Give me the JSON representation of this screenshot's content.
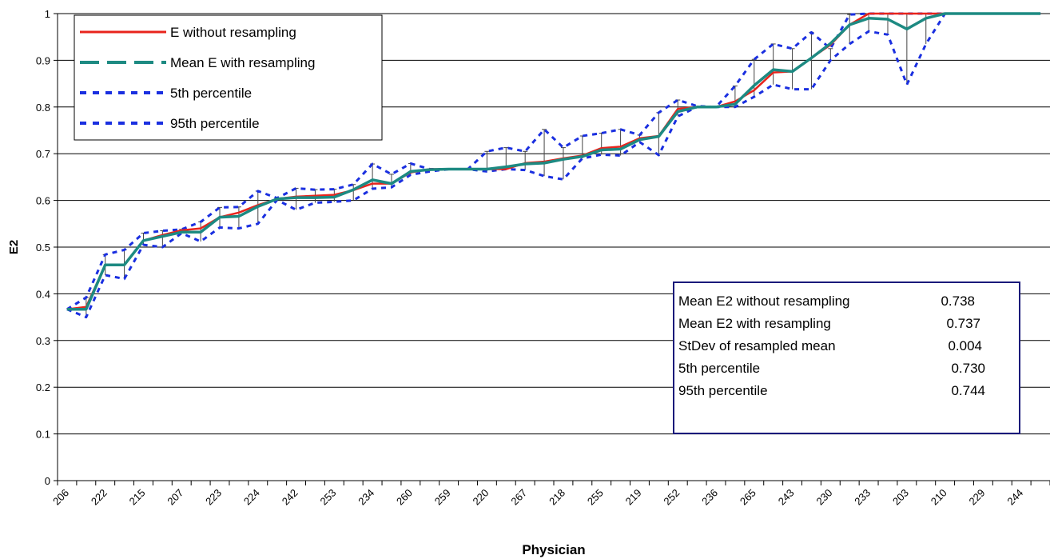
{
  "chart_data": {
    "type": "line",
    "ylabel": "E2",
    "xlabel": "Physician",
    "ylim": [
      0,
      1
    ],
    "yticks": [
      "0",
      "0.1",
      "0.2",
      "0.3",
      "0.4",
      "0.5",
      "0.6",
      "0.7",
      "0.8",
      "0.9",
      "1"
    ],
    "grid": true,
    "tick_labels": [
      "206",
      "222",
      "215",
      "207",
      "223",
      "224",
      "242",
      "253",
      "234",
      "260",
      "259",
      "220",
      "267",
      "218",
      "255",
      "219",
      "252",
      "236",
      "265",
      "243",
      "230",
      "233",
      "203",
      "210",
      "229",
      "244"
    ],
    "tick_positions": [
      1,
      3,
      5,
      7,
      9,
      11,
      13,
      15,
      17,
      19,
      21,
      23,
      25,
      27,
      29,
      31,
      33,
      35,
      37,
      39,
      41,
      43,
      45,
      47,
      49,
      51
    ],
    "n_points": 52,
    "legend": {
      "placement": "top-left",
      "entries": [
        "E without resampling",
        "Mean E with resampling",
        "5th percentile",
        "95th percentile"
      ]
    },
    "series": [
      {
        "name": "E without resampling",
        "color": "#e8241c",
        "values": [
          0.367,
          0.372,
          0.462,
          0.462,
          0.514,
          0.526,
          0.536,
          0.54,
          0.564,
          0.574,
          0.59,
          0.603,
          0.608,
          0.61,
          0.612,
          0.622,
          0.636,
          0.636,
          0.66,
          0.667,
          0.667,
          0.667,
          0.667,
          0.667,
          0.68,
          0.683,
          0.69,
          0.696,
          0.712,
          0.715,
          0.733,
          0.738,
          0.796,
          0.8,
          0.8,
          0.812,
          0.836,
          0.874,
          0.876,
          0.905,
          0.933,
          0.976,
          1.0,
          1.0,
          1.0,
          1.0,
          1.0,
          1.0,
          1.0,
          1.0,
          1.0,
          1.0
        ]
      },
      {
        "name": "Mean E with resampling",
        "color": "#1d8a82",
        "values": [
          0.367,
          0.367,
          0.462,
          0.462,
          0.514,
          0.523,
          0.532,
          0.532,
          0.564,
          0.566,
          0.587,
          0.603,
          0.606,
          0.606,
          0.607,
          0.623,
          0.644,
          0.636,
          0.662,
          0.666,
          0.667,
          0.667,
          0.667,
          0.672,
          0.678,
          0.68,
          0.688,
          0.694,
          0.708,
          0.71,
          0.73,
          0.737,
          0.79,
          0.8,
          0.8,
          0.806,
          0.846,
          0.88,
          0.876,
          0.905,
          0.936,
          0.976,
          0.99,
          0.988,
          0.967,
          0.99,
          1.0,
          1.0,
          1.0,
          1.0,
          1.0,
          1.0
        ]
      },
      {
        "name": "5th percentile",
        "color": "#1a2fe0",
        "values": [
          0.367,
          0.35,
          0.44,
          0.432,
          0.505,
          0.5,
          0.53,
          0.512,
          0.542,
          0.54,
          0.55,
          0.601,
          0.58,
          0.595,
          0.597,
          0.6,
          0.625,
          0.628,
          0.655,
          0.662,
          0.667,
          0.667,
          0.662,
          0.667,
          0.665,
          0.652,
          0.645,
          0.69,
          0.698,
          0.696,
          0.725,
          0.697,
          0.78,
          0.8,
          0.8,
          0.8,
          0.822,
          0.848,
          0.838,
          0.838,
          0.9,
          0.935,
          0.962,
          0.955,
          0.848,
          0.935,
          1.0,
          1.0,
          1.0,
          1.0,
          1.0,
          1.0
        ]
      },
      {
        "name": "95th percentile",
        "color": "#1a2fe0",
        "values": [
          0.367,
          0.392,
          0.484,
          0.494,
          0.53,
          0.535,
          0.538,
          0.554,
          0.585,
          0.586,
          0.62,
          0.605,
          0.626,
          0.623,
          0.624,
          0.634,
          0.678,
          0.656,
          0.679,
          0.667,
          0.667,
          0.667,
          0.705,
          0.713,
          0.705,
          0.752,
          0.713,
          0.738,
          0.744,
          0.752,
          0.74,
          0.788,
          0.815,
          0.802,
          0.8,
          0.845,
          0.902,
          0.935,
          0.925,
          0.96,
          0.925,
          0.998,
          1.0,
          1.0,
          1.0,
          1.0,
          1.0,
          1.0,
          1.0,
          1.0,
          1.0,
          1.0
        ]
      }
    ],
    "annotation_box": {
      "placement": "bottom-right",
      "rows": [
        {
          "label": "Mean E2 without resampling",
          "value": "0.738"
        },
        {
          "label": "Mean E2 with resampling",
          "value": "0.737"
        },
        {
          "label": "StDev of resampled mean",
          "value": "0.004"
        },
        {
          "label": "5th percentile",
          "value": "0.730"
        },
        {
          "label": "95th percentile",
          "value": "0.744"
        }
      ]
    }
  }
}
